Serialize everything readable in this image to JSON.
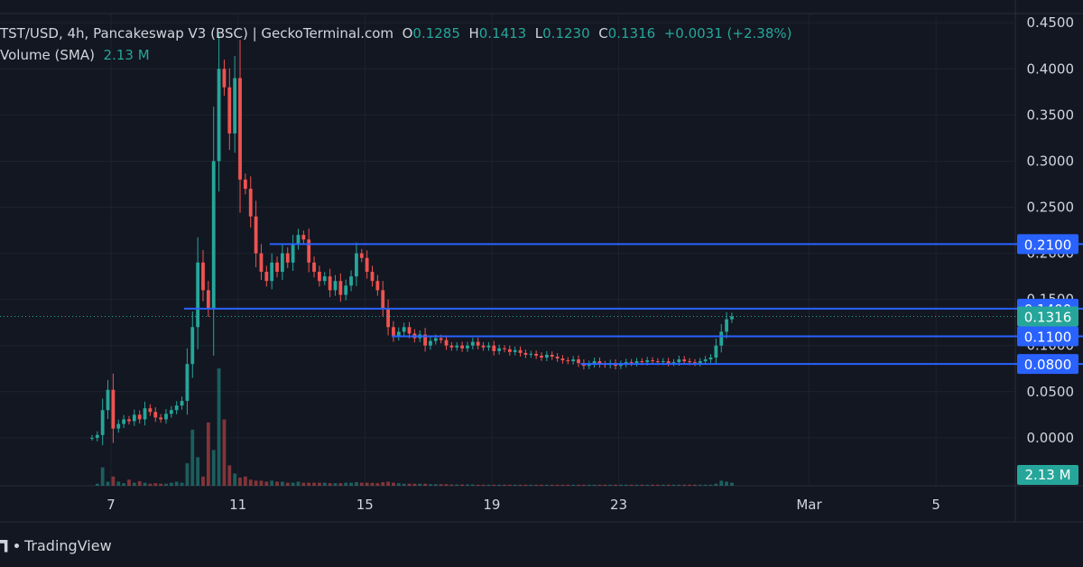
{
  "legend": {
    "symbol": "TST/USD, 4h, Pancakeswap V3 (BSC) | GeckoTerminal.com",
    "o_label": "O",
    "o": "0.1285",
    "h_label": "H",
    "h": "0.1413",
    "l_label": "L",
    "l": "0.1230",
    "c_label": "C",
    "c": "0.1316",
    "change": "+0.0031 (+2.38%)"
  },
  "volume_legend": {
    "label": "Volume (SMA)",
    "value": "2.13 M"
  },
  "brand": "TradingView",
  "colors": {
    "up": "#26a69a",
    "down": "#ef5350",
    "level": "#2962ff",
    "bg": "#131722"
  },
  "chart_data": {
    "type": "candlestick",
    "y_ticks": [
      "0.0000",
      "0.0500",
      "0.1000",
      "0.1500",
      "0.2000",
      "0.2500",
      "0.3000",
      "0.3500",
      "0.4000",
      "0.4500"
    ],
    "y_tick_values": [
      0,
      0.05,
      0.1,
      0.15,
      0.2,
      0.25,
      0.3,
      0.35,
      0.4,
      0.45
    ],
    "ylim": [
      -0.052,
      0.46
    ],
    "x_ticks": [
      {
        "label": "7",
        "day": 7
      },
      {
        "label": "11",
        "day": 11
      },
      {
        "label": "15",
        "day": 15
      },
      {
        "label": "19",
        "day": 19
      },
      {
        "label": "23",
        "day": 23
      },
      {
        "label": "Mar",
        "day": 29
      },
      {
        "label": "5",
        "day": 33
      }
    ],
    "xlim": [
      3.5,
      35.5
    ],
    "levels": [
      {
        "label": "0.2100",
        "value": 0.21,
        "from_day": 12.0
      },
      {
        "label": "0.1400",
        "value": 0.14,
        "from_day": 9.3
      },
      {
        "label": "0.1100",
        "value": 0.11,
        "from_day": 15.85
      },
      {
        "label": "0.0800",
        "value": 0.08,
        "from_day": 21.8
      }
    ],
    "last_price": {
      "label": "0.1316",
      "value": 0.1316
    },
    "volume_tag": "2.13 M",
    "start_day": 6.4,
    "bars_per_day": 6,
    "closes": [
      0.0,
      0.003,
      0.03,
      0.052,
      0.01,
      0.015,
      0.02,
      0.018,
      0.025,
      0.02,
      0.032,
      0.028,
      0.022,
      0.02,
      0.026,
      0.03,
      0.035,
      0.04,
      0.08,
      0.12,
      0.19,
      0.16,
      0.14,
      0.3,
      0.4,
      0.38,
      0.33,
      0.39,
      0.28,
      0.27,
      0.24,
      0.2,
      0.18,
      0.17,
      0.19,
      0.18,
      0.2,
      0.19,
      0.21,
      0.22,
      0.215,
      0.19,
      0.18,
      0.17,
      0.175,
      0.16,
      0.17,
      0.155,
      0.165,
      0.175,
      0.2,
      0.195,
      0.18,
      0.17,
      0.16,
      0.14,
      0.12,
      0.11,
      0.115,
      0.12,
      0.113,
      0.108,
      0.112,
      0.1,
      0.105,
      0.108,
      0.106,
      0.1,
      0.098,
      0.1,
      0.097,
      0.1,
      0.104,
      0.1,
      0.098,
      0.1,
      0.094,
      0.097,
      0.096,
      0.093,
      0.095,
      0.092,
      0.09,
      0.091,
      0.089,
      0.087,
      0.09,
      0.088,
      0.086,
      0.084,
      0.083,
      0.085,
      0.081,
      0.078,
      0.08,
      0.083,
      0.08,
      0.079,
      0.081,
      0.078,
      0.08,
      0.082,
      0.081,
      0.083,
      0.082,
      0.084,
      0.083,
      0.082,
      0.083,
      0.081,
      0.082,
      0.085,
      0.083,
      0.082,
      0.081,
      0.083,
      0.085,
      0.087,
      0.1,
      0.115,
      0.1285,
      0.1316
    ],
    "volumes": [
      0.0,
      0.2,
      1.8,
      0.4,
      0.9,
      0.4,
      0.25,
      0.6,
      0.3,
      0.45,
      0.3,
      0.2,
      0.25,
      0.2,
      0.2,
      0.3,
      0.4,
      0.3,
      2.2,
      5.5,
      2.8,
      0.9,
      6.2,
      3.5,
      11.5,
      6.5,
      2.0,
      1.2,
      0.8,
      0.9,
      0.6,
      0.5,
      0.5,
      0.4,
      0.5,
      0.4,
      0.4,
      0.3,
      0.3,
      0.4,
      0.3,
      0.3,
      0.3,
      0.3,
      0.3,
      0.25,
      0.25,
      0.25,
      0.3,
      0.3,
      0.35,
      0.3,
      0.3,
      0.28,
      0.25,
      0.35,
      0.4,
      0.3,
      0.25,
      0.2,
      0.2,
      0.2,
      0.2,
      0.2,
      0.15,
      0.15,
      0.15,
      0.15,
      0.12,
      0.12,
      0.12,
      0.12,
      0.12,
      0.1,
      0.1,
      0.1,
      0.1,
      0.1,
      0.1,
      0.1,
      0.1,
      0.1,
      0.1,
      0.1,
      0.1,
      0.1,
      0.1,
      0.1,
      0.1,
      0.1,
      0.1,
      0.1,
      0.1,
      0.1,
      0.1,
      0.1,
      0.1,
      0.1,
      0.1,
      0.1,
      0.1,
      0.1,
      0.1,
      0.1,
      0.1,
      0.1,
      0.1,
      0.1,
      0.1,
      0.1,
      0.1,
      0.1,
      0.1,
      0.1,
      0.1,
      0.1,
      0.1,
      0.1,
      0.2,
      0.5,
      0.4,
      0.3
    ]
  }
}
